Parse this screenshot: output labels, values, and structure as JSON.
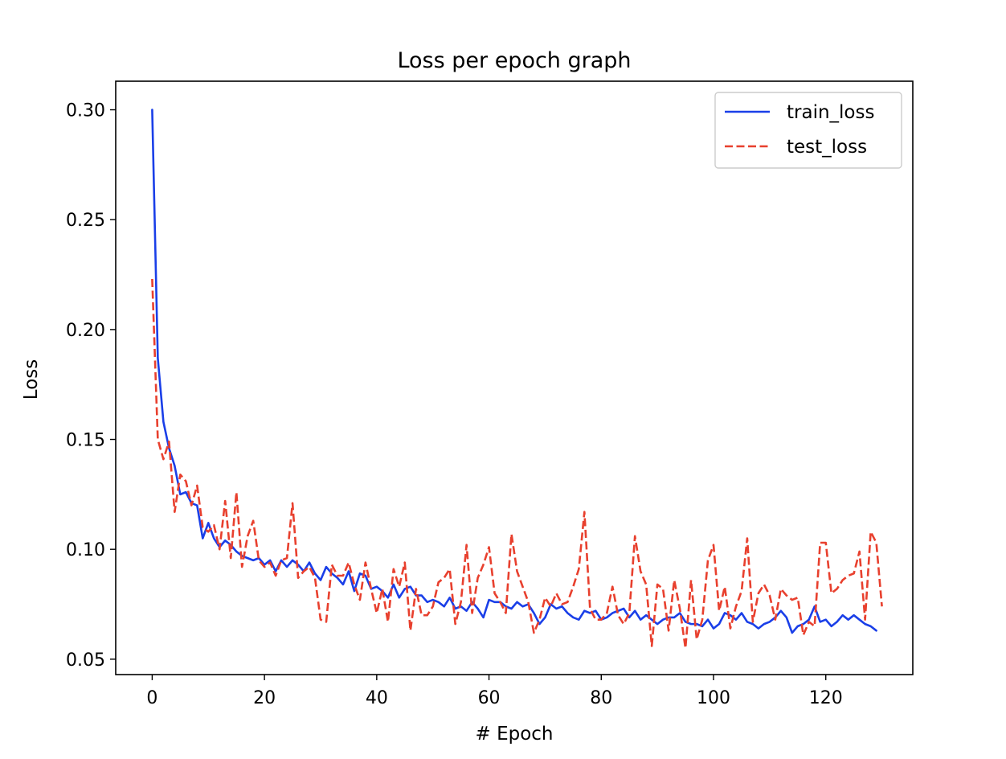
{
  "chart_data": {
    "type": "line",
    "title": "Loss per epoch graph",
    "xlabel": "# Epoch",
    "ylabel": "Loss",
    "xlim": [
      -6.5,
      135.5
    ],
    "ylim": [
      0.043,
      0.313
    ],
    "xticks": [
      0,
      20,
      40,
      60,
      80,
      100,
      120
    ],
    "xtick_labels": [
      "0",
      "20",
      "40",
      "60",
      "80",
      "100",
      "120"
    ],
    "yticks": [
      0.05,
      0.1,
      0.15,
      0.2,
      0.25,
      0.3
    ],
    "ytick_labels": [
      "0.05",
      "0.10",
      "0.15",
      "0.20",
      "0.25",
      "0.30"
    ],
    "grid": false,
    "legend_position": "top-right",
    "series": [
      {
        "name": "train_loss",
        "style": "solid",
        "color": "#1a3fe8",
        "values": [
          0.3,
          0.187,
          0.158,
          0.146,
          0.138,
          0.125,
          0.126,
          0.121,
          0.12,
          0.105,
          0.112,
          0.105,
          0.101,
          0.104,
          0.102,
          0.099,
          0.097,
          0.096,
          0.095,
          0.096,
          0.093,
          0.095,
          0.09,
          0.095,
          0.092,
          0.095,
          0.093,
          0.09,
          0.094,
          0.089,
          0.086,
          0.092,
          0.089,
          0.087,
          0.084,
          0.09,
          0.081,
          0.089,
          0.088,
          0.082,
          0.083,
          0.081,
          0.078,
          0.084,
          0.078,
          0.082,
          0.083,
          0.079,
          0.079,
          0.076,
          0.077,
          0.076,
          0.074,
          0.078,
          0.073,
          0.074,
          0.072,
          0.076,
          0.073,
          0.069,
          0.077,
          0.076,
          0.076,
          0.074,
          0.073,
          0.076,
          0.074,
          0.075,
          0.071,
          0.066,
          0.069,
          0.075,
          0.073,
          0.074,
          0.071,
          0.069,
          0.068,
          0.072,
          0.071,
          0.072,
          0.068,
          0.069,
          0.071,
          0.072,
          0.073,
          0.069,
          0.072,
          0.068,
          0.07,
          0.068,
          0.066,
          0.068,
          0.069,
          0.069,
          0.071,
          0.067,
          0.066,
          0.066,
          0.065,
          0.068,
          0.064,
          0.066,
          0.071,
          0.07,
          0.068,
          0.071,
          0.067,
          0.066,
          0.064,
          0.066,
          0.067,
          0.069,
          0.072,
          0.069,
          0.062,
          0.065,
          0.066,
          0.068,
          0.074,
          0.067,
          0.068,
          0.065,
          0.067,
          0.07,
          0.068,
          0.07,
          0.068,
          0.066,
          0.065,
          0.063
        ]
      },
      {
        "name": "test_loss",
        "style": "dashed",
        "color": "#e8402e",
        "values": [
          0.223,
          0.15,
          0.141,
          0.149,
          0.117,
          0.134,
          0.131,
          0.12,
          0.129,
          0.11,
          0.108,
          0.111,
          0.1,
          0.122,
          0.096,
          0.126,
          0.092,
          0.106,
          0.113,
          0.095,
          0.092,
          0.094,
          0.088,
          0.095,
          0.096,
          0.121,
          0.087,
          0.09,
          0.092,
          0.087,
          0.068,
          0.067,
          0.093,
          0.088,
          0.088,
          0.094,
          0.084,
          0.077,
          0.094,
          0.082,
          0.071,
          0.082,
          0.067,
          0.091,
          0.083,
          0.094,
          0.063,
          0.082,
          0.07,
          0.07,
          0.074,
          0.085,
          0.087,
          0.091,
          0.066,
          0.076,
          0.102,
          0.071,
          0.087,
          0.093,
          0.101,
          0.08,
          0.076,
          0.071,
          0.107,
          0.09,
          0.083,
          0.076,
          0.062,
          0.068,
          0.078,
          0.074,
          0.08,
          0.075,
          0.076,
          0.083,
          0.091,
          0.117,
          0.073,
          0.068,
          0.068,
          0.071,
          0.083,
          0.07,
          0.066,
          0.071,
          0.106,
          0.09,
          0.084,
          0.056,
          0.084,
          0.082,
          0.063,
          0.086,
          0.073,
          0.055,
          0.086,
          0.059,
          0.068,
          0.095,
          0.102,
          0.072,
          0.083,
          0.064,
          0.074,
          0.081,
          0.105,
          0.067,
          0.08,
          0.084,
          0.079,
          0.068,
          0.082,
          0.079,
          0.077,
          0.078,
          0.061,
          0.067,
          0.065,
          0.103,
          0.103,
          0.08,
          0.082,
          0.086,
          0.088,
          0.089,
          0.099,
          0.068,
          0.108,
          0.103,
          0.074
        ]
      }
    ]
  }
}
